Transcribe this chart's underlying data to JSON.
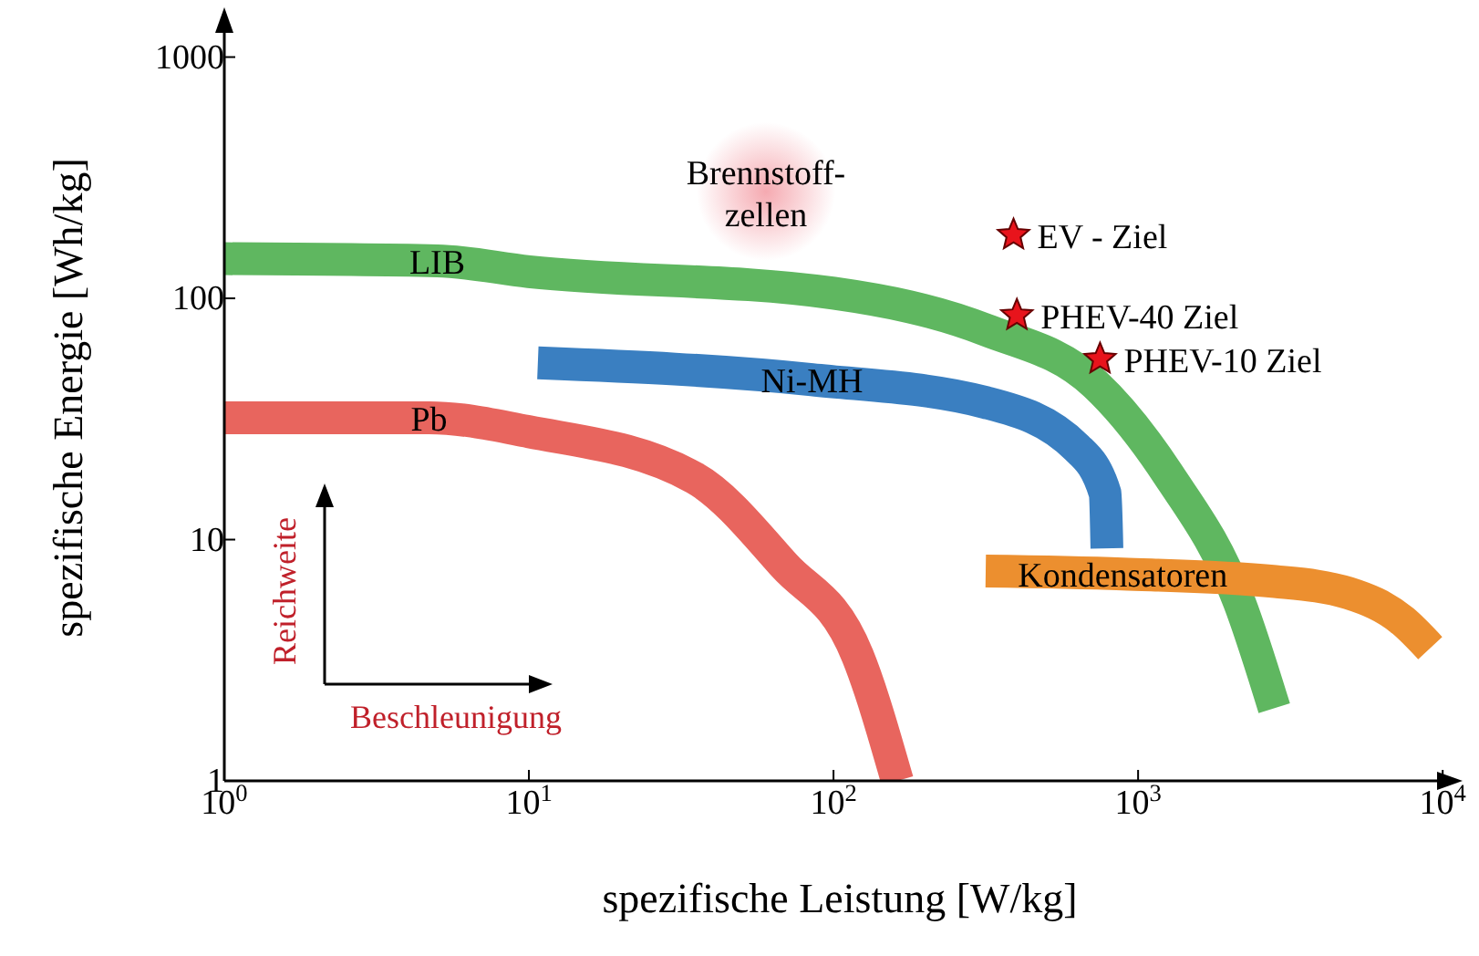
{
  "chart_data": {
    "type": "line",
    "xlabel": "spezifische Leistung [W/kg]",
    "ylabel": "spezifische Energie [Wh/kg]",
    "log": "xy",
    "xlim": [
      1,
      11000
    ],
    "ylim": [
      1,
      1500
    ],
    "xticks": [
      {
        "value": 1,
        "label": "10$^{0}$"
      },
      {
        "value": 10,
        "label": "10$^{1}$"
      },
      {
        "value": 100,
        "label": "10$^{2}$"
      },
      {
        "value": 1000,
        "label": "10$^{3}$"
      },
      {
        "value": 10000,
        "label": "10$^{4}$"
      }
    ],
    "yticks": [
      1,
      10,
      100,
      1000
    ],
    "line_style": "solid",
    "series": [
      {
        "name": "LIB",
        "color": "#5fb760",
        "x": [
          1,
          5,
          10,
          100,
          316,
          724,
          1260,
          2150,
          2800
        ],
        "values": [
          146,
          143,
          129,
          105,
          74,
          44,
          18.5,
          5.5,
          2.0
        ]
      },
      {
        "name": "Ni-MH",
        "color": "#3a7fc1",
        "x": [
          10.7,
          85,
          316,
          630,
          780,
          790
        ],
        "values": [
          54,
          46,
          37,
          24,
          15.5,
          9.2
        ]
      },
      {
        "name": "Pb",
        "color": "#e8655e",
        "x": [
          1,
          4.7,
          10,
          35,
          69,
          120,
          162
        ],
        "values": [
          32,
          32,
          28,
          18,
          7.8,
          3.3,
          1
        ]
      },
      {
        "name": "Kondensatoren",
        "color": "#ec8f2f",
        "x": [
          316,
          890,
          2820,
          4900,
          7400,
          9100
        ],
        "values": [
          7.4,
          7.2,
          6.7,
          6.0,
          4.6,
          3.55
        ]
      },
      {
        "name": "EV - Ziel",
        "type": "scatter",
        "marker": "star",
        "color": "#e8141c",
        "x": [
          390
        ],
        "values": [
          183
        ]
      },
      {
        "name": "PHEV-40 Ziel",
        "type": "scatter",
        "marker": "star",
        "color": "#e8141c",
        "x": [
          400
        ],
        "values": [
          85
        ]
      },
      {
        "name": "PHEV-10 Ziel",
        "type": "scatter",
        "marker": "star",
        "color": "#e8141c",
        "x": [
          750
        ],
        "values": [
          56
        ]
      }
    ],
    "annotations": [
      "Brennstoff-\nzellen",
      "Reichweite",
      "Beschleunigung"
    ]
  }
}
